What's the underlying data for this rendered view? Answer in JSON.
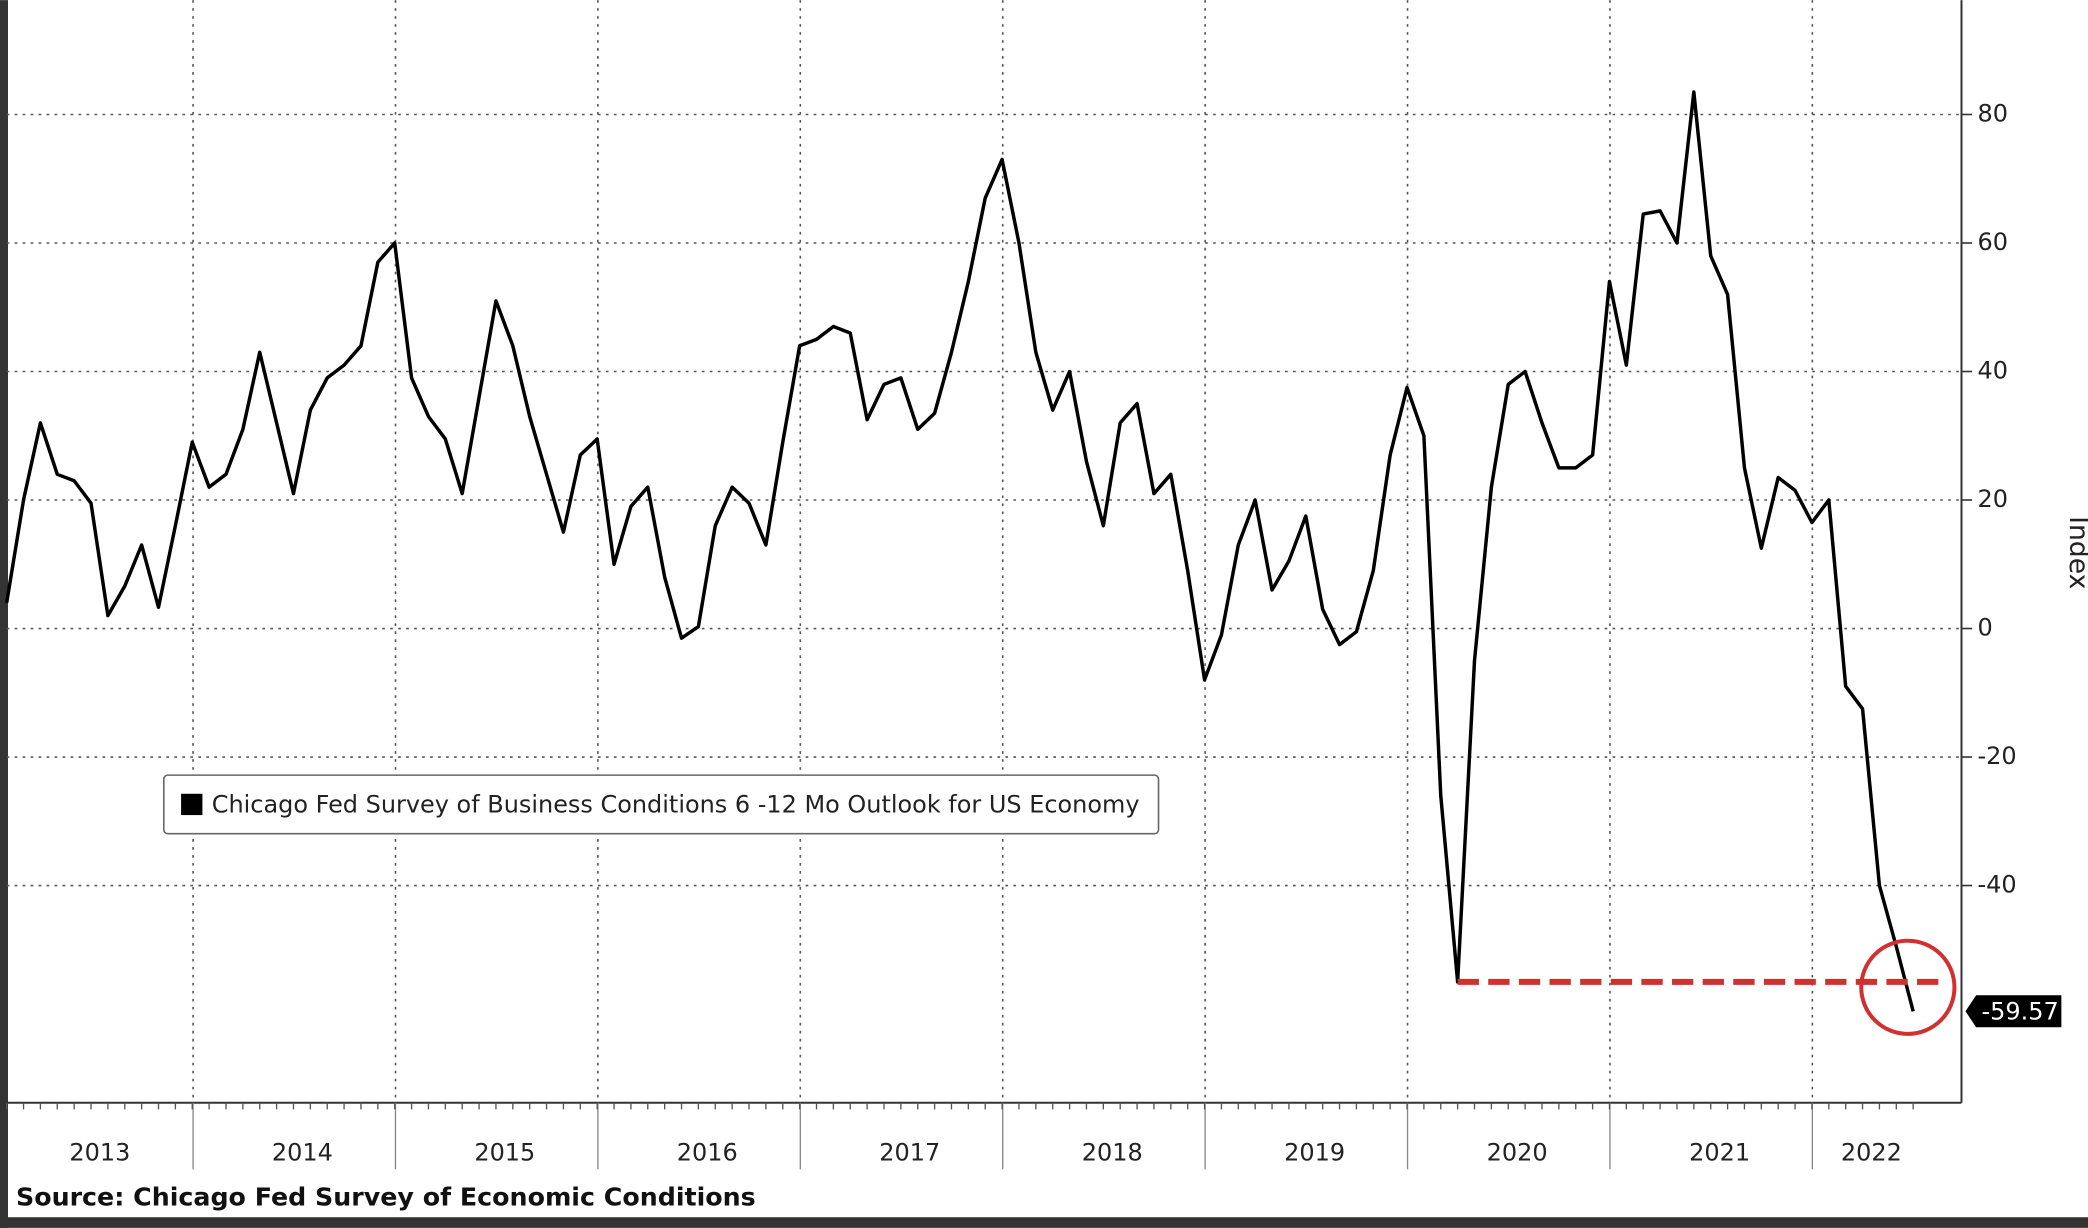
{
  "chart_data": {
    "type": "line",
    "categories": [
      null,
      null,
      null,
      null,
      null,
      null,
      "2013",
      null,
      null,
      null,
      null,
      null,
      null,
      null,
      null,
      null,
      null,
      null,
      "2014",
      null,
      null,
      null,
      null,
      null,
      null,
      null,
      null,
      null,
      null,
      null,
      "2015",
      null,
      null,
      null,
      null,
      null,
      null,
      null,
      null,
      null,
      null,
      null,
      "2016",
      null,
      null,
      null,
      null,
      null,
      null,
      null,
      null,
      null,
      null,
      null,
      "2017",
      null,
      null,
      null,
      null,
      null,
      null,
      null,
      null,
      null,
      null,
      null,
      "2018",
      null,
      null,
      null,
      null,
      null,
      null,
      null,
      null,
      null,
      null,
      null,
      "2019",
      null,
      null,
      null,
      null,
      null,
      null,
      null,
      null,
      null,
      null,
      null,
      "2020",
      null,
      null,
      null,
      null,
      null,
      null,
      null,
      null,
      null,
      null,
      null,
      "2021",
      null,
      null,
      null,
      null,
      null,
      null,
      null,
      null,
      "2022",
      null,
      null
    ],
    "series": [
      {
        "name": "Chicago Fed Survey of Business Conditions 6 -12 Mo Outlook for US Economy",
        "color": "#000000",
        "values": [
          4,
          20,
          32,
          24,
          23,
          19.5,
          2,
          6.6,
          13,
          3.3,
          16,
          29,
          22,
          24,
          31,
          43,
          32,
          21,
          34,
          39,
          41,
          44,
          57,
          60,
          39,
          33,
          29.5,
          21,
          36,
          51,
          44,
          33,
          24,
          15,
          27,
          29.5,
          10,
          19,
          22,
          8,
          -1.5,
          0.3,
          16,
          22,
          19.5,
          13,
          29,
          44,
          45,
          47,
          46,
          32.5,
          38,
          39,
          31,
          33.5,
          43,
          54,
          67,
          73,
          60,
          43,
          34,
          40,
          26,
          16,
          32,
          35,
          21,
          24,
          9,
          -8,
          -1,
          13,
          20,
          6,
          10.5,
          17.5,
          3,
          -2.5,
          -0.5,
          9,
          27,
          37.5,
          30,
          -26,
          -55,
          -5,
          22,
          38,
          40,
          32,
          25,
          25,
          27,
          54,
          41,
          64.5,
          65,
          60,
          83.5,
          58,
          52,
          25,
          12.5,
          23.5,
          21.5,
          16.5,
          20,
          -9,
          -12.5,
          -40,
          -49.5,
          -59.57
        ],
        "value_labels": [
          null,
          null,
          null,
          null,
          null,
          null,
          null,
          null,
          null,
          null,
          null,
          null,
          null,
          null,
          null,
          null,
          null,
          null,
          null,
          null,
          null,
          null,
          null,
          null,
          null,
          null,
          null,
          null,
          null,
          null,
          null,
          null,
          null,
          null,
          null,
          null,
          null,
          null,
          null,
          null,
          null,
          null,
          null,
          null,
          null,
          null,
          null,
          null,
          null,
          null,
          null,
          null,
          null,
          null,
          null,
          null,
          null,
          null,
          null,
          null,
          null,
          null,
          null,
          null,
          null,
          null,
          null,
          null,
          null,
          null,
          null,
          null,
          null,
          null,
          null,
          null,
          null,
          null,
          null,
          null,
          null,
          null,
          null,
          null,
          null,
          null,
          null,
          null,
          null,
          null,
          null,
          null,
          null,
          null,
          null,
          null,
          null,
          null,
          null,
          null,
          null,
          null,
          null,
          null,
          null,
          null,
          null,
          null,
          null,
          null,
          null,
          null,
          null,
          "-59.57"
        ]
      }
    ],
    "reference_line": {
      "value": -55,
      "color": "#d03030"
    },
    "ylim": [
      -73.8,
      97.8
    ],
    "yticks": [
      -40,
      -20,
      0,
      20,
      40,
      60,
      80
    ],
    "ylabel": "Index",
    "grid": true,
    "source": "Source: Chicago Fed Survey of Economic Conditions"
  }
}
